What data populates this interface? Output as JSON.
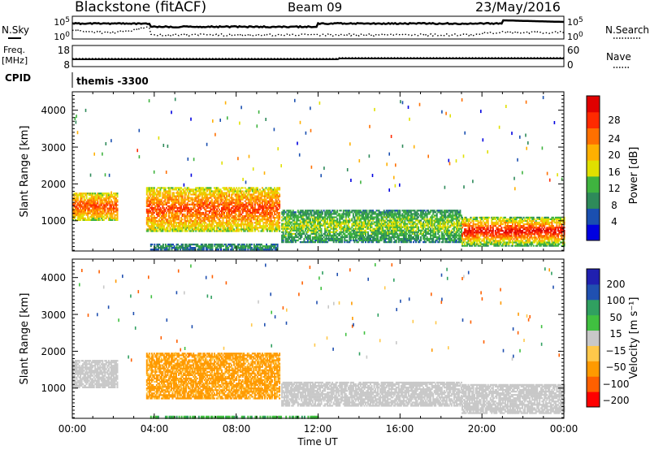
{
  "header": {
    "station": "Blackstone (fitACF)",
    "beam": "Beam 09",
    "date": "23/May/2016"
  },
  "top_panels": {
    "nsky_label": "N.Sky",
    "nsearch_label": "N.Search",
    "noise_ticks": [
      "10^5",
      "10^0"
    ],
    "freq_label": "Freq.",
    "freq_unit": "[MHz]",
    "freq_ticks": [
      "18",
      "8"
    ],
    "nave_label": "Nave",
    "nave_ticks": [
      "60",
      "0"
    ],
    "cpid_label": "CPID",
    "cpid_value": "themis -3300"
  },
  "colors": {
    "power": [
      "#0000e0",
      "#1a4fb0",
      "#2e8a5a",
      "#3fb33f",
      "#e0e000",
      "#ffb000",
      "#ff7000",
      "#ff2a00",
      "#e00000"
    ],
    "velocity": [
      "#ff0000",
      "#ff6000",
      "#ff9a00",
      "#ffc84a",
      "#c8c8c8",
      "#40c040",
      "#30a060",
      "#2050b0",
      "#2020b0"
    ]
  },
  "chart_data": [
    {
      "type": "heatmap",
      "name": "power",
      "ylabel": "Slant Range [km]",
      "xlim": [
        0,
        24
      ],
      "ylim": [
        180,
        4500
      ],
      "yticks": [
        "1000",
        "2000",
        "3000",
        "4000"
      ],
      "xticks": [
        "00:00",
        "04:00",
        "08:00",
        "12:00",
        "16:00",
        "20:00",
        "00:00"
      ],
      "colorbar": {
        "label": "Power [dB]",
        "ticks": [
          "4",
          "8",
          "12",
          "16",
          "20",
          "24",
          "28"
        ],
        "range": [
          0,
          30
        ]
      },
      "regions": [
        {
          "t0": 0.0,
          "t1": 2.2,
          "r0": 1000,
          "r1": 1750,
          "level": 14,
          "peak": 24
        },
        {
          "t0": 3.6,
          "t1": 10.1,
          "r0": 700,
          "r1": 1900,
          "level": 14,
          "peak": 24
        },
        {
          "t0": 3.8,
          "t1": 10.0,
          "r0": 200,
          "r1": 350,
          "level": 6,
          "peak": 10
        },
        {
          "t0": 10.2,
          "t1": 19.0,
          "r0": 400,
          "r1": 1300,
          "level": 8,
          "peak": 14
        },
        {
          "t0": 19.0,
          "t1": 24.0,
          "r0": 300,
          "r1": 1100,
          "level": 10,
          "peak": 28
        }
      ]
    },
    {
      "type": "heatmap",
      "name": "velocity",
      "ylabel": "Slant Range [km]",
      "xlabel": "Time UT",
      "xlim": [
        0,
        24
      ],
      "ylim": [
        180,
        4500
      ],
      "yticks": [
        "1000",
        "2000",
        "3000",
        "4000"
      ],
      "xticks": [
        "00:00",
        "04:00",
        "08:00",
        "12:00",
        "16:00",
        "20:00",
        "00:00"
      ],
      "colorbar": {
        "label": "Velocity [m s⁻¹]",
        "ticks": [
          "200",
          "100",
          "50",
          "15",
          "−15",
          "−50",
          "−100",
          "−200"
        ]
      },
      "regions": [
        {
          "t0": 0.0,
          "t1": 2.2,
          "r0": 1000,
          "r1": 1750,
          "velocity": 0
        },
        {
          "t0": 3.6,
          "t1": 10.1,
          "r0": 700,
          "r1": 1950,
          "velocity": -70
        },
        {
          "t0": 10.2,
          "t1": 19.0,
          "r0": 500,
          "r1": 1150,
          "velocity": 0
        },
        {
          "t0": 19.0,
          "t1": 24.0,
          "r0": 300,
          "r1": 1100,
          "velocity": 0
        }
      ]
    }
  ]
}
